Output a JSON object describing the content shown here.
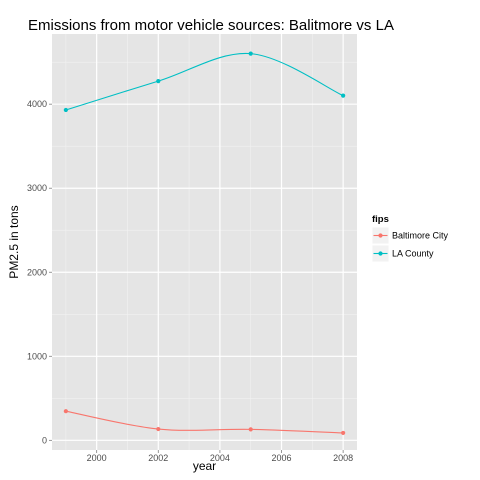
{
  "chart_data": {
    "type": "line",
    "title": "Emissions from motor vehicle sources: Balitmore vs LA",
    "xlabel": "year",
    "ylabel": "PM2.5 in tons",
    "x": [
      1999,
      2002,
      2005,
      2008
    ],
    "series": [
      {
        "name": "Baltimore City",
        "color": "#F8766D",
        "values": [
          346.82,
          134.31,
          130.43,
          88.28
        ]
      },
      {
        "name": "LA County",
        "color": "#00BFC4",
        "values": [
          3931.12,
          4274.03,
          4601.41,
          4101.32
        ]
      }
    ],
    "xlim": [
      1998.55,
      2008.45
    ],
    "ylim": [
      -115,
      4835
    ],
    "xticks": [
      "2000",
      "2002",
      "2004",
      "2006",
      "2008"
    ],
    "yticks": [
      "0",
      "1000",
      "2000",
      "3000",
      "4000"
    ],
    "legend": {
      "title": "fips",
      "position": "right"
    },
    "grid": true,
    "smooth": true,
    "panel_background": "#E5E5E5",
    "grid_color": "#FFFFFF"
  }
}
